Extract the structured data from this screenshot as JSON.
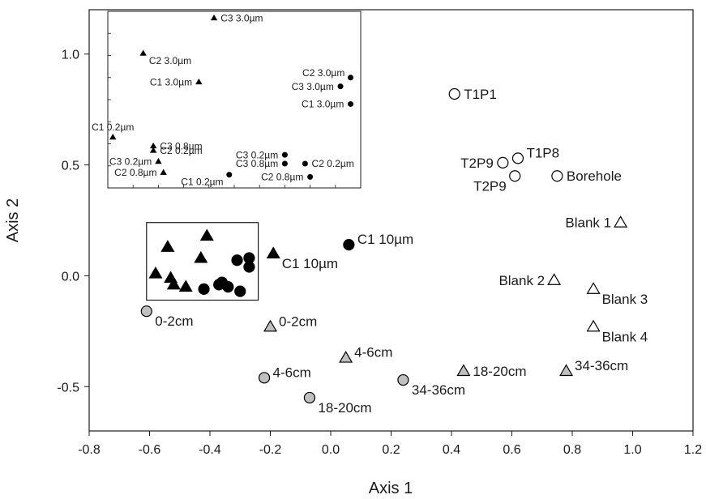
{
  "chart_data": {
    "type": "scatter",
    "xlabel": "Axis 1",
    "ylabel": "Axis 2",
    "xlim": [
      -0.8,
      1.2
    ],
    "ylim": [
      -0.7,
      1.2
    ],
    "xticks": [
      "-0.8",
      "-0.6",
      "-0.4",
      "-0.2",
      "0.0",
      "0.2",
      "0.4",
      "0.6",
      "0.8",
      "1.0",
      "1.2"
    ],
    "yticks": [
      "-0.5",
      "0.0",
      "0.5",
      "1.0"
    ],
    "grid": false,
    "points": [
      {
        "label": "T1P1",
        "x": 0.41,
        "y": 0.82,
        "marker": "circle",
        "fill": "white",
        "label_pos": "right"
      },
      {
        "label": "T1P8",
        "x": 0.62,
        "y": 0.53,
        "marker": "circle",
        "fill": "white",
        "label_pos": "upper-right"
      },
      {
        "label": "T2P9",
        "x": 0.57,
        "y": 0.51,
        "marker": "circle",
        "fill": "white",
        "label_pos": "left"
      },
      {
        "label": "T2P9",
        "x": 0.61,
        "y": 0.45,
        "marker": "circle",
        "fill": "white",
        "label_pos": "lower-left"
      },
      {
        "label": "Borehole",
        "x": 0.75,
        "y": 0.45,
        "marker": "circle",
        "fill": "white",
        "label_pos": "right"
      },
      {
        "label": "Blank 1",
        "x": 0.96,
        "y": 0.24,
        "marker": "triangle",
        "fill": "white",
        "label_pos": "left"
      },
      {
        "label": "Blank 2",
        "x": 0.74,
        "y": -0.02,
        "marker": "triangle",
        "fill": "white",
        "label_pos": "left"
      },
      {
        "label": "Blank 3",
        "x": 0.87,
        "y": -0.06,
        "marker": "triangle",
        "fill": "white",
        "label_pos": "lower-right"
      },
      {
        "label": "Blank 4",
        "x": 0.87,
        "y": -0.23,
        "marker": "triangle",
        "fill": "white",
        "label_pos": "lower-right"
      },
      {
        "label": "C1 10µm",
        "x": 0.06,
        "y": 0.14,
        "marker": "circle",
        "fill": "black",
        "label_pos": "upper-right"
      },
      {
        "label": "C1 10µm",
        "x": -0.19,
        "y": 0.1,
        "marker": "triangle",
        "fill": "black",
        "label_pos": "lower-right"
      },
      {
        "label": "0-2cm",
        "x": -0.61,
        "y": -0.16,
        "marker": "circle",
        "fill": "grey",
        "label_pos": "lower-right"
      },
      {
        "label": "0-2cm",
        "x": -0.2,
        "y": -0.23,
        "marker": "triangle",
        "fill": "grey",
        "label_pos": "upper-right"
      },
      {
        "label": "4-6cm",
        "x": 0.05,
        "y": -0.37,
        "marker": "triangle",
        "fill": "grey",
        "label_pos": "upper-right"
      },
      {
        "label": "4-6cm",
        "x": -0.22,
        "y": -0.46,
        "marker": "circle",
        "fill": "grey",
        "label_pos": "upper-right"
      },
      {
        "label": "18-20cm",
        "x": 0.44,
        "y": -0.43,
        "marker": "triangle",
        "fill": "grey",
        "label_pos": "right"
      },
      {
        "label": "34-36cm",
        "x": 0.78,
        "y": -0.43,
        "marker": "triangle",
        "fill": "grey",
        "label_pos": "upper-right"
      },
      {
        "label": "34-36cm",
        "x": 0.24,
        "y": -0.47,
        "marker": "circle",
        "fill": "grey",
        "label_pos": "lower-right"
      },
      {
        "label": "18-20cm",
        "x": -0.07,
        "y": -0.55,
        "marker": "circle",
        "fill": "grey",
        "label_pos": "lower-right"
      },
      {
        "label": "",
        "x": -0.58,
        "y": 0.01,
        "marker": "triangle",
        "fill": "black"
      },
      {
        "label": "",
        "x": -0.54,
        "y": 0.13,
        "marker": "triangle",
        "fill": "black"
      },
      {
        "label": "",
        "x": -0.53,
        "y": -0.01,
        "marker": "triangle",
        "fill": "black"
      },
      {
        "label": "",
        "x": -0.52,
        "y": -0.04,
        "marker": "triangle",
        "fill": "black"
      },
      {
        "label": "",
        "x": -0.48,
        "y": -0.05,
        "marker": "triangle",
        "fill": "black"
      },
      {
        "label": "",
        "x": -0.43,
        "y": 0.08,
        "marker": "triangle",
        "fill": "black"
      },
      {
        "label": "",
        "x": -0.41,
        "y": 0.18,
        "marker": "triangle",
        "fill": "black"
      },
      {
        "label": "",
        "x": -0.42,
        "y": -0.06,
        "marker": "circle",
        "fill": "black"
      },
      {
        "label": "",
        "x": -0.37,
        "y": -0.04,
        "marker": "circle",
        "fill": "black"
      },
      {
        "label": "",
        "x": -0.36,
        "y": -0.03,
        "marker": "circle",
        "fill": "black"
      },
      {
        "label": "",
        "x": -0.34,
        "y": -0.05,
        "marker": "circle",
        "fill": "black"
      },
      {
        "label": "",
        "x": -0.3,
        "y": -0.07,
        "marker": "circle",
        "fill": "black"
      },
      {
        "label": "",
        "x": -0.31,
        "y": 0.07,
        "marker": "circle",
        "fill": "black"
      },
      {
        "label": "",
        "x": -0.27,
        "y": 0.08,
        "marker": "circle",
        "fill": "black"
      },
      {
        "label": "",
        "x": -0.27,
        "y": 0.04,
        "marker": "circle",
        "fill": "black"
      }
    ],
    "highlight_box": {
      "x": [
        -0.61,
        -0.24
      ],
      "y": [
        -0.11,
        0.24
      ]
    },
    "inset": {
      "location": "upper-left",
      "xlim": [
        -0.7,
        -0.2
      ],
      "ylim": [
        -0.2,
        0.6
      ],
      "points": [
        {
          "label": "C3 3.0µm",
          "x": -0.49,
          "y": 0.57,
          "marker": "triangle",
          "label_pos": "right"
        },
        {
          "label": "C2 3.0µm",
          "x": -0.63,
          "y": 0.41,
          "marker": "triangle",
          "label_pos": "lower-right"
        },
        {
          "label": "C1 3.0µm",
          "x": -0.52,
          "y": 0.28,
          "marker": "triangle",
          "label_pos": "left"
        },
        {
          "label": "C2 3.0µm",
          "x": -0.22,
          "y": 0.3,
          "marker": "circle",
          "label_pos": "upper-left"
        },
        {
          "label": "C3 3.0µm",
          "x": -0.24,
          "y": 0.26,
          "marker": "circle",
          "label_pos": "left"
        },
        {
          "label": "C1 3.0µm",
          "x": -0.22,
          "y": 0.18,
          "marker": "circle",
          "label_pos": "left"
        },
        {
          "label": "C1 0.2µm",
          "x": -0.69,
          "y": 0.03,
          "marker": "triangle",
          "label_pos": "upper"
        },
        {
          "label": "C3 0.8µm",
          "x": -0.61,
          "y": -0.01,
          "marker": "triangle",
          "label_pos": "right"
        },
        {
          "label": "C2 0.2µm",
          "x": -0.61,
          "y": -0.03,
          "marker": "triangle",
          "label_pos": "right"
        },
        {
          "label": "C3 0.2µm",
          "x": -0.6,
          "y": -0.08,
          "marker": "triangle",
          "label_pos": "left"
        },
        {
          "label": "C2 0.8µm",
          "x": -0.59,
          "y": -0.13,
          "marker": "triangle",
          "label_pos": "left"
        },
        {
          "label": "C3 0.2µm",
          "x": -0.35,
          "y": -0.05,
          "marker": "circle",
          "label_pos": "left"
        },
        {
          "label": "C3 0.8µm",
          "x": -0.35,
          "y": -0.09,
          "marker": "circle",
          "label_pos": "left"
        },
        {
          "label": "C2 0.2µm",
          "x": -0.31,
          "y": -0.09,
          "marker": "circle",
          "label_pos": "right"
        },
        {
          "label": "C1 0.2µm",
          "x": -0.46,
          "y": -0.14,
          "marker": "circle",
          "label_pos": "lower-left"
        },
        {
          "label": "C2 0.8µm",
          "x": -0.3,
          "y": -0.15,
          "marker": "circle",
          "label_pos": "left"
        }
      ]
    }
  }
}
